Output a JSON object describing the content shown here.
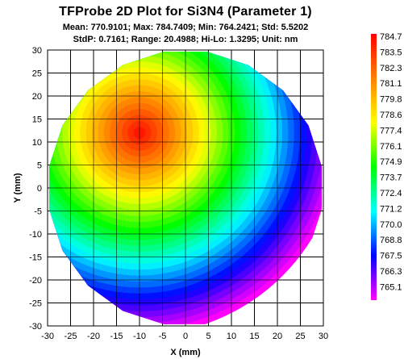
{
  "chart_data": {
    "type": "heatmap",
    "title": "TFProbe 2D Plot for Si3N4 (Parameter 1)",
    "stats_line1": "Mean: 770.9101; Max: 784.7409; Min: 764.2421; Std: 5.5202",
    "stats_line2": "StdP: 0.7161; Range: 20.4988; Hi-Lo: 1.3295; Unit: nm",
    "xlabel": "X (mm)",
    "ylabel": "Y (mm)",
    "xlim": [
      -30,
      30
    ],
    "ylim": [
      -30,
      30
    ],
    "xticks": [
      "-30",
      "-25",
      "-20",
      "-15",
      "-10",
      "-5",
      "0",
      "5",
      "10",
      "15",
      "20",
      "25",
      "30"
    ],
    "yticks": [
      "30",
      "25",
      "20",
      "15",
      "10",
      "5",
      "0",
      "-5",
      "-10",
      "-15",
      "-20",
      "-25",
      "-30"
    ],
    "grid": true,
    "wafer_radius": 30,
    "max_location": [
      -10,
      12
    ],
    "colorbar": {
      "min": 764.2421,
      "max": 784.7409,
      "ticks": [
        "784.7",
        "783.5",
        "782.3",
        "781.1",
        "779.8",
        "778.6",
        "777.4",
        "776.1",
        "774.9",
        "773.7",
        "772.4",
        "771.2",
        "770.0",
        "768.8",
        "767.5",
        "766.3",
        "765.1"
      ],
      "colors_top_to_bottom": [
        "#ff0000",
        "#ff8000",
        "#ffff00",
        "#00ff00",
        "#00ffff",
        "#0000ff",
        "#ff00ff"
      ]
    }
  }
}
